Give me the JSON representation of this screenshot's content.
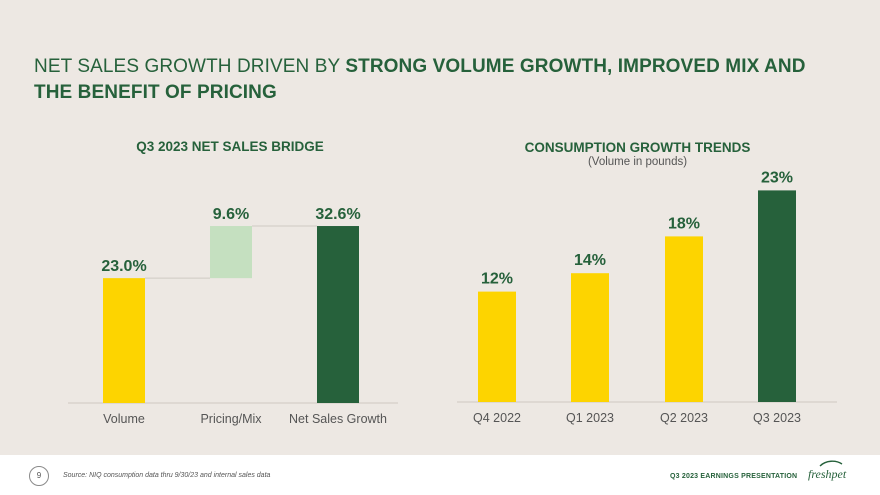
{
  "headline": {
    "regular": "NET SALES GROWTH DRIVEN BY",
    "bold": "STRONG VOLUME GROWTH, IMPROVED MIX AND THE BENEFIT OF PRICING"
  },
  "footer": {
    "page_number": "9",
    "source": "Source:   NIQ consumption  data thru 9/30/23 and internal sales data",
    "deck_label": "Q3 2023 EARNINGS  PRESENTATION",
    "logo_text": "freshpet"
  },
  "colors": {
    "yellow": "#fdd400",
    "light_green": "#c5e0c0",
    "dark_green": "#26613b",
    "text": "#555555"
  },
  "chart_data": [
    {
      "type": "bar",
      "subtype": "waterfall",
      "title": "Q3 2023 NET SALES BRIDGE",
      "categories": [
        "Volume",
        "Pricing/Mix",
        "Net Sales Growth"
      ],
      "values": [
        23.0,
        9.6,
        32.6
      ],
      "labels": [
        "23.0%",
        "9.6%",
        "32.6%"
      ],
      "bar_kinds": [
        "increase",
        "increase",
        "total"
      ],
      "colors": [
        "#fdd400",
        "#c5e0c0",
        "#26613b"
      ],
      "ylim": [
        0,
        35
      ],
      "grid": false,
      "legend": "none"
    },
    {
      "type": "bar",
      "title": "CONSUMPTION GROWTH TRENDS",
      "subtitle": "(Volume in pounds)",
      "categories": [
        "Q4 2022",
        "Q1 2023",
        "Q2 2023",
        "Q3 2023"
      ],
      "values": [
        12,
        14,
        18,
        23
      ],
      "labels": [
        "12%",
        "14%",
        "18%",
        "23%"
      ],
      "colors": [
        "#fdd400",
        "#fdd400",
        "#fdd400",
        "#26613b"
      ],
      "ylim": [
        0,
        25
      ],
      "grid": false,
      "legend": "none"
    }
  ]
}
